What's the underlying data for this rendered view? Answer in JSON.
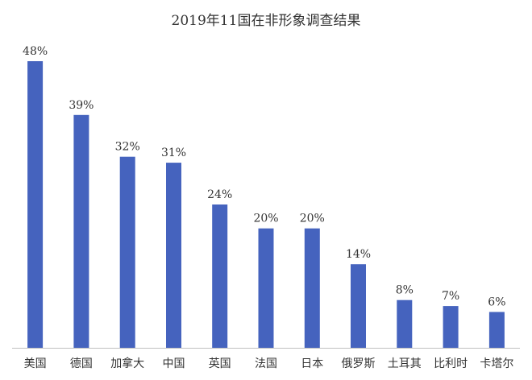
{
  "chart_data": {
    "type": "bar",
    "title": "2019年11国在非形象调查结果",
    "categories": [
      "美国",
      "德国",
      "加拿大",
      "中国",
      "英国",
      "法国",
      "日本",
      "俄罗斯",
      "土耳其",
      "比利时",
      "卡塔尔"
    ],
    "values": [
      48,
      39,
      32,
      31,
      24,
      20,
      20,
      14,
      8,
      7,
      6
    ],
    "value_labels": [
      "48%",
      "39%",
      "32%",
      "31%",
      "24%",
      "20%",
      "20%",
      "14%",
      "8%",
      "7%",
      "6%"
    ],
    "ylim": [
      0,
      50
    ],
    "grid": false,
    "colors": {
      "bar": "#4563BE",
      "axis": "#BFBFBF",
      "text": "#333333"
    }
  }
}
